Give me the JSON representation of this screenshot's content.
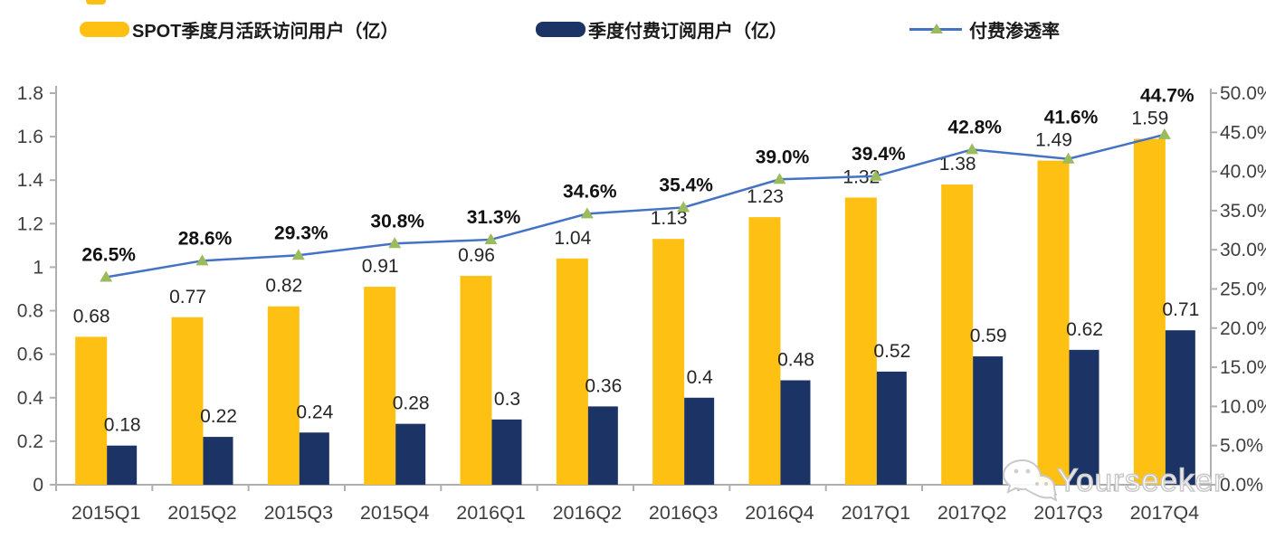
{
  "legend": {
    "items": [
      {
        "label": "SPOT季度月活跃访问用户（亿）",
        "color": "#FDC013",
        "type": "bar"
      },
      {
        "label": "季度付费订阅用户（亿）",
        "color": "#1C3365",
        "type": "bar"
      },
      {
        "label": "付费渗透率",
        "color": "#4472C4",
        "marker_color": "#9CBB5C",
        "type": "line"
      }
    ]
  },
  "chart_data": {
    "type": "bar",
    "subtype": "clustered-bars-with-line",
    "categories": [
      "2015Q1",
      "2015Q2",
      "2015Q3",
      "2015Q4",
      "2016Q1",
      "2016Q2",
      "2016Q3",
      "2016Q4",
      "2017Q1",
      "2017Q2",
      "2017Q3",
      "2017Q4"
    ],
    "series": [
      {
        "name": "SPOT季度月活跃访问用户（亿）",
        "type": "bar",
        "axis": "left",
        "color": "#FDC013",
        "values": [
          0.68,
          0.77,
          0.82,
          0.91,
          0.96,
          1.04,
          1.13,
          1.23,
          1.32,
          1.38,
          1.49,
          1.59
        ],
        "labels": [
          "0.68",
          "0.77",
          "0.82",
          "0.91",
          "0.96",
          "1.04",
          "1.13",
          "1.23",
          "1.32",
          "1.38",
          "1.49",
          "1.59"
        ]
      },
      {
        "name": "季度付费订阅用户（亿）",
        "type": "bar",
        "axis": "left",
        "color": "#1C3365",
        "values": [
          0.18,
          0.22,
          0.24,
          0.28,
          0.3,
          0.36,
          0.4,
          0.48,
          0.52,
          0.59,
          0.62,
          0.71
        ],
        "labels": [
          "0.18",
          "0.22",
          "0.24",
          "0.28",
          "0.3",
          "0.36",
          "0.4",
          "0.48",
          "0.52",
          "0.59",
          "0.62",
          "0.71"
        ]
      },
      {
        "name": "付费渗透率",
        "type": "line",
        "axis": "right",
        "color": "#4472C4",
        "marker": "triangle",
        "marker_color": "#9CBB5C",
        "values": [
          26.5,
          28.6,
          29.3,
          30.8,
          31.3,
          34.6,
          35.4,
          39.0,
          39.4,
          42.8,
          41.6,
          44.7
        ],
        "labels": [
          "26.5%",
          "28.6%",
          "29.3%",
          "30.8%",
          "31.3%",
          "34.6%",
          "35.4%",
          "39.0%",
          "39.4%",
          "42.8%",
          "41.6%",
          "44.7%"
        ]
      }
    ],
    "left_axis": {
      "min": 0,
      "max": 1.8,
      "ticks": [
        "1.8",
        "1.6",
        "1.4",
        "1.2",
        "1",
        "0.8",
        "0.6",
        "0.4",
        "0.2",
        "0"
      ]
    },
    "right_axis": {
      "min": 0,
      "max": 50,
      "ticks": [
        "50.0%",
        "45.0%",
        "40.0%",
        "35.0%",
        "30.0%",
        "25.0%",
        "20.0%",
        "15.0%",
        "10.0%",
        "5.0%",
        "0.0%"
      ]
    },
    "grid": false,
    "legend_position": "top",
    "title": "",
    "xlabel": "",
    "ylabel": ""
  },
  "watermark": {
    "text": "Yourseeker",
    "icon": "wechat-icon"
  },
  "style": {
    "axis_line_color": "#AFAFAF",
    "tick_label_color": "#3F3F3F",
    "value_label_color": "#262626",
    "pct_label_color": "#111111"
  }
}
